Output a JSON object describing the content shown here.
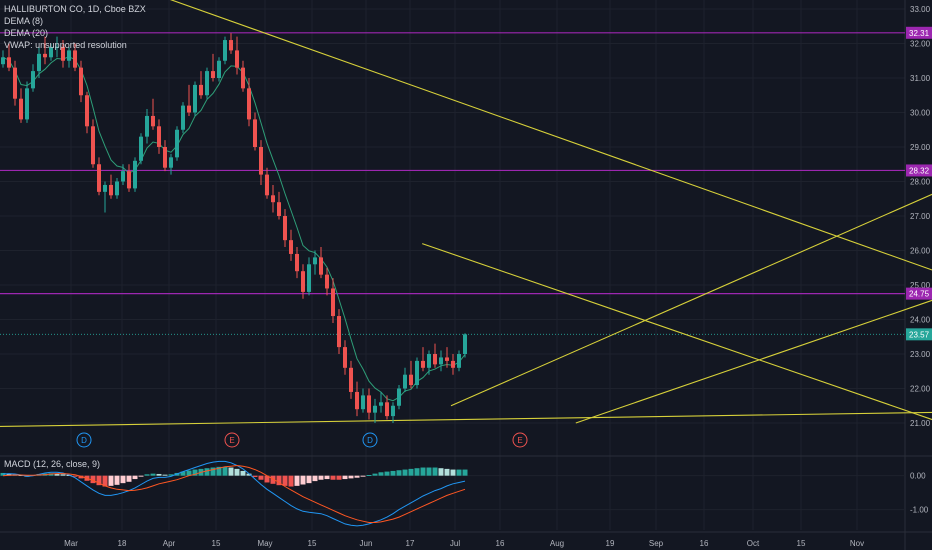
{
  "legend": {
    "symbol": "HALLIBURTON CO, 1D, Cboe BZX",
    "dema8": "DEMA (8)",
    "dema20": "DEMA (20)",
    "vwap": "VWAP: unsupported resolution"
  },
  "macd_legend": "MACD (12, 26, close, 9)",
  "colors": {
    "background": "#131722",
    "up": "#26a69a",
    "down": "#ef5350",
    "hline": "#9c27b0",
    "trendline": "#d6d03a",
    "dema_line": "#2e9e78",
    "macd_line": "#2196f3",
    "signal_line": "#ff5722",
    "last_price": "#26a69a"
  },
  "chart_data": [
    {
      "type": "candlestick",
      "title": "HALLIBURTON CO, 1D, Cboe BZX",
      "x_tick_labels": [
        "Mar",
        "18",
        "Apr",
        "15",
        "May",
        "15",
        "Jun",
        "17",
        "Jul",
        "16",
        "Aug",
        "19",
        "Sep",
        "16",
        "Oct",
        "15",
        "Nov"
      ],
      "y_tick_labels": [
        "33.00",
        "32.00",
        "31.00",
        "30.00",
        "29.00",
        "28.00",
        "27.00",
        "26.00",
        "25.00",
        "24.00",
        "23.00",
        "22.00",
        "21.00"
      ],
      "ylim": [
        20.2,
        33.3
      ],
      "grid": true,
      "horizontal_levels": [
        {
          "label": "32.31",
          "value": 32.31
        },
        {
          "label": "28.32",
          "value": 28.32
        },
        {
          "label": "24.75",
          "value": 24.75
        }
      ],
      "last_price": {
        "label": "23.57",
        "value": 23.57
      },
      "event_markers": [
        "D",
        "E",
        "D",
        "E"
      ],
      "candles": [
        [
          31.4,
          31.8,
          31.3,
          31.6
        ],
        [
          31.6,
          32.0,
          31.2,
          31.3
        ],
        [
          31.3,
          31.5,
          30.2,
          30.4
        ],
        [
          30.4,
          30.7,
          29.7,
          29.8
        ],
        [
          29.8,
          30.9,
          29.7,
          30.7
        ],
        [
          30.7,
          31.4,
          30.6,
          31.2
        ],
        [
          31.2,
          31.9,
          31.0,
          31.7
        ],
        [
          31.7,
          32.2,
          31.4,
          31.6
        ],
        [
          31.6,
          32.0,
          31.5,
          31.9
        ],
        [
          31.9,
          32.2,
          31.6,
          31.9
        ],
        [
          31.9,
          32.1,
          31.3,
          31.5
        ],
        [
          31.5,
          31.9,
          31.3,
          31.8
        ],
        [
          31.8,
          32.0,
          31.2,
          31.3
        ],
        [
          31.3,
          31.5,
          30.3,
          30.5
        ],
        [
          30.5,
          30.6,
          29.4,
          29.6
        ],
        [
          29.6,
          29.8,
          28.4,
          28.5
        ],
        [
          28.5,
          28.7,
          27.6,
          27.7
        ],
        [
          27.7,
          28.0,
          27.1,
          27.9
        ],
        [
          27.9,
          28.2,
          27.5,
          27.6
        ],
        [
          27.6,
          28.1,
          27.5,
          28.0
        ],
        [
          28.0,
          28.5,
          27.9,
          28.3
        ],
        [
          28.3,
          28.5,
          27.7,
          27.8
        ],
        [
          27.8,
          28.7,
          27.7,
          28.6
        ],
        [
          28.6,
          29.4,
          28.5,
          29.3
        ],
        [
          29.3,
          30.1,
          29.1,
          29.9
        ],
        [
          29.9,
          30.4,
          29.5,
          29.6
        ],
        [
          29.6,
          29.8,
          28.8,
          29.0
        ],
        [
          29.0,
          29.2,
          28.3,
          28.4
        ],
        [
          28.4,
          28.8,
          28.2,
          28.7
        ],
        [
          28.7,
          29.6,
          28.6,
          29.5
        ],
        [
          29.5,
          30.3,
          29.4,
          30.2
        ],
        [
          30.2,
          30.8,
          29.9,
          30.0
        ],
        [
          30.0,
          30.9,
          29.9,
          30.8
        ],
        [
          30.8,
          31.2,
          30.4,
          30.5
        ],
        [
          30.5,
          31.3,
          30.4,
          31.2
        ],
        [
          31.2,
          31.7,
          30.9,
          31.0
        ],
        [
          31.0,
          31.6,
          30.9,
          31.5
        ],
        [
          31.5,
          32.2,
          31.4,
          32.1
        ],
        [
          32.1,
          32.3,
          31.7,
          31.8
        ],
        [
          31.8,
          32.2,
          31.1,
          31.3
        ],
        [
          31.3,
          31.5,
          30.6,
          30.7
        ],
        [
          30.7,
          31.0,
          29.6,
          29.8
        ],
        [
          29.8,
          30.0,
          28.9,
          29.0
        ],
        [
          29.0,
          29.2,
          27.9,
          28.2
        ],
        [
          28.2,
          28.4,
          27.5,
          27.6
        ],
        [
          27.6,
          27.9,
          27.1,
          27.4
        ],
        [
          27.4,
          27.7,
          26.9,
          27.0
        ],
        [
          27.0,
          27.2,
          26.1,
          26.3
        ],
        [
          26.3,
          26.6,
          25.7,
          25.9
        ],
        [
          25.9,
          26.1,
          25.2,
          25.4
        ],
        [
          25.4,
          25.6,
          24.6,
          24.8
        ],
        [
          24.8,
          25.8,
          24.7,
          25.6
        ],
        [
          25.6,
          26.0,
          25.3,
          25.8
        ],
        [
          25.8,
          26.1,
          25.2,
          25.3
        ],
        [
          25.3,
          25.5,
          24.7,
          24.9
        ],
        [
          24.9,
          25.2,
          23.9,
          24.1
        ],
        [
          24.1,
          24.3,
          23.0,
          23.2
        ],
        [
          23.2,
          23.4,
          22.4,
          22.6
        ],
        [
          22.6,
          22.8,
          21.7,
          21.9
        ],
        [
          21.9,
          22.2,
          21.2,
          21.4
        ],
        [
          21.4,
          22.0,
          21.3,
          21.8
        ],
        [
          21.8,
          22.0,
          21.1,
          21.3
        ],
        [
          21.3,
          21.7,
          21.0,
          21.5
        ],
        [
          21.5,
          21.9,
          21.3,
          21.6
        ],
        [
          21.6,
          21.8,
          21.1,
          21.2
        ],
        [
          21.2,
          21.6,
          21.0,
          21.5
        ],
        [
          21.5,
          22.1,
          21.4,
          22.0
        ],
        [
          22.0,
          22.6,
          21.9,
          22.4
        ],
        [
          22.4,
          22.8,
          22.0,
          22.1
        ],
        [
          22.1,
          22.9,
          22.0,
          22.8
        ],
        [
          22.8,
          23.2,
          22.5,
          22.6
        ],
        [
          22.6,
          23.1,
          22.4,
          23.0
        ],
        [
          23.0,
          23.3,
          22.6,
          22.7
        ],
        [
          22.7,
          23.1,
          22.5,
          22.9
        ],
        [
          22.9,
          23.2,
          22.6,
          22.8
        ],
        [
          22.8,
          23.0,
          22.4,
          22.6
        ],
        [
          22.6,
          23.1,
          22.5,
          23.0
        ],
        [
          23.0,
          23.6,
          22.9,
          23.57
        ]
      ],
      "trendlines": [
        {
          "from": [
            "2019-03-22",
            33.3
          ],
          "to": [
            "2019-11-26",
            21.0
          ]
        },
        {
          "from": [
            "2019-05-14",
            26.2
          ],
          "to": [
            "2019-09-16",
            20.2
          ]
        },
        {
          "from": [
            "2019-05-20",
            21.5
          ],
          "to": [
            "2019-11-29",
            33.3
          ]
        },
        {
          "from": [
            "2019-06-15",
            21.0
          ],
          "to": [
            "2019-11-29",
            29.0
          ]
        },
        {
          "from": [
            "2019-02-15",
            20.9
          ],
          "to": [
            "2019-11-29",
            21.5
          ]
        }
      ]
    },
    {
      "type": "bar",
      "title": "MACD (12, 26, close, 9)",
      "y_tick_labels": [
        "0.00",
        "-1.00"
      ],
      "ylim": [
        -1.6,
        0.55
      ],
      "histogram": [
        0.08,
        0.06,
        0.04,
        0.02,
        0.0,
        0.02,
        0.05,
        0.06,
        0.07,
        0.05,
        0.04,
        0.02,
        -0.02,
        -0.08,
        -0.15,
        -0.22,
        -0.28,
        -0.32,
        -0.3,
        -0.27,
        -0.22,
        -0.18,
        -0.1,
        -0.02,
        0.04,
        0.06,
        0.05,
        0.03,
        0.04,
        0.08,
        0.12,
        0.15,
        0.18,
        0.2,
        0.22,
        0.24,
        0.26,
        0.26,
        0.24,
        0.2,
        0.14,
        0.06,
        -0.04,
        -0.12,
        -0.2,
        -0.24,
        -0.28,
        -0.3,
        -0.32,
        -0.3,
        -0.26,
        -0.22,
        -0.16,
        -0.12,
        -0.1,
        -0.12,
        -0.12,
        -0.1,
        -0.08,
        -0.06,
        -0.02,
        0.02,
        0.06,
        0.1,
        0.12,
        0.14,
        0.16,
        0.18,
        0.2,
        0.22,
        0.24,
        0.24,
        0.24,
        0.22,
        0.2,
        0.18,
        0.18,
        0.18
      ],
      "macd": [
        0.05,
        0.06,
        0.05,
        0.02,
        -0.02,
        0.0,
        0.04,
        0.08,
        0.1,
        0.1,
        0.08,
        0.02,
        -0.06,
        -0.18,
        -0.3,
        -0.42,
        -0.52,
        -0.58,
        -0.58,
        -0.55,
        -0.5,
        -0.44,
        -0.36,
        -0.26,
        -0.16,
        -0.08,
        -0.05,
        -0.05,
        -0.02,
        0.05,
        0.12,
        0.18,
        0.24,
        0.3,
        0.36,
        0.4,
        0.42,
        0.42,
        0.38,
        0.3,
        0.2,
        0.06,
        -0.1,
        -0.26,
        -0.4,
        -0.52,
        -0.64,
        -0.76,
        -0.88,
        -0.98,
        -1.05,
        -1.08,
        -1.1,
        -1.12,
        -1.18,
        -1.26,
        -1.34,
        -1.42,
        -1.46,
        -1.48,
        -1.46,
        -1.42,
        -1.36,
        -1.3,
        -1.22,
        -1.12,
        -1.0,
        -0.9,
        -0.8,
        -0.7,
        -0.6,
        -0.52,
        -0.44,
        -0.38,
        -0.3,
        -0.24,
        -0.2,
        -0.16
      ],
      "signal": [
        0.0,
        0.01,
        0.02,
        0.02,
        0.01,
        0.01,
        0.02,
        0.03,
        0.05,
        0.06,
        0.06,
        0.05,
        0.03,
        -0.02,
        -0.08,
        -0.14,
        -0.22,
        -0.3,
        -0.36,
        -0.4,
        -0.42,
        -0.44,
        -0.43,
        -0.4,
        -0.36,
        -0.3,
        -0.24,
        -0.2,
        -0.16,
        -0.12,
        -0.06,
        0.0,
        0.04,
        0.1,
        0.14,
        0.18,
        0.22,
        0.26,
        0.28,
        0.3,
        0.28,
        0.24,
        0.18,
        0.1,
        0.0,
        -0.1,
        -0.2,
        -0.32,
        -0.42,
        -0.52,
        -0.62,
        -0.7,
        -0.78,
        -0.86,
        -0.94,
        -1.02,
        -1.1,
        -1.18,
        -1.24,
        -1.3,
        -1.34,
        -1.38,
        -1.38,
        -1.36,
        -1.32,
        -1.28,
        -1.22,
        -1.14,
        -1.06,
        -0.98,
        -0.9,
        -0.82,
        -0.74,
        -0.66,
        -0.58,
        -0.52,
        -0.46,
        -0.4
      ]
    }
  ]
}
